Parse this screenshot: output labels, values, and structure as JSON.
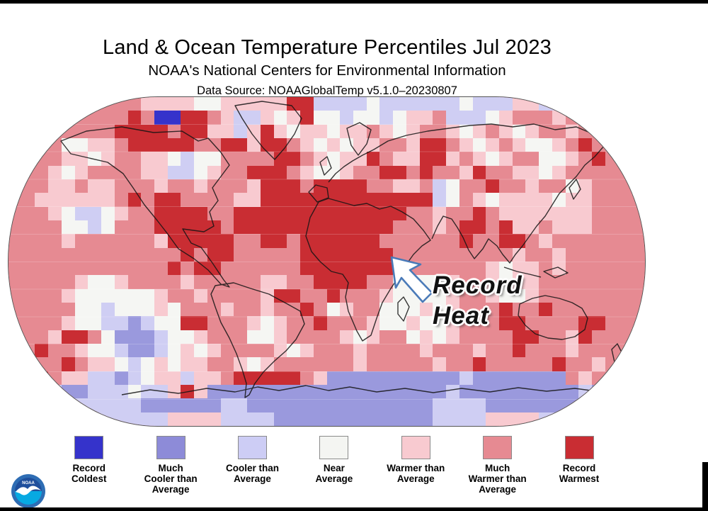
{
  "header": {
    "title": "Land & Ocean Temperature Percentiles Jul 2023",
    "subtitle": "NOAA's National Centers for Environmental Information",
    "source_line": "Data Source: NOAAGlobalTemp v5.1.0–20230807"
  },
  "annotation": {
    "line1": "Record",
    "line2": "Heat",
    "arrow_fill": "#ffffff",
    "arrow_outline": "#4a7ab8"
  },
  "logo": {
    "name": "NOAA",
    "text": "NOAA",
    "ring_color": "#2e6db4",
    "top_color": "#1f4f9c",
    "bottom_color": "#07a9e2"
  },
  "legend": {
    "items": [
      {
        "label": "Record\nColdest",
        "color": "#3533cb",
        "code": "K"
      },
      {
        "label": "Much\nCooler than\nAverage",
        "color": "#8d8bd8",
        "code": "M"
      },
      {
        "label": "Cooler than\nAverage",
        "color": "#cdcdf5",
        "code": "C"
      },
      {
        "label": "Near\nAverage",
        "color": "#f4f5f2",
        "code": "W"
      },
      {
        "label": "Warmer than\nAverage",
        "color": "#f8cad0",
        "code": "P"
      },
      {
        "label": "Much\nWarmer than\nAverage",
        "color": "#e68a92",
        "code": "R"
      },
      {
        "label": "Record\nWarmest",
        "color": "#c92d33",
        "code": "X"
      }
    ]
  },
  "map_grid": {
    "note": "Approximate 48x24 grid of temperature-percentile cells read from the map; codes K,M,C,W,P,R,X match legend categories.",
    "cols": 48,
    "palette": {
      "K": "#3533cb",
      "M": "#9a99dd",
      "C": "#cfcef3",
      "W": "#f5f6f3",
      "P": "#f8cad0",
      "R": "#e68a92",
      "X": "#c92d33"
    },
    "rows": [
      "RRRRRRRRRRPPPPWWPPPPPXXCCCCWCCCCCCWCCCPPCCCCRRRR",
      "RRRRRRRRRXRKKXXRPCCPWPXWWCWWCWPPRCCCWPRRRPRRRRRR",
      "RRRRRRRRXXXXRXXPPCPXPWPPWPPRPWPRRPWPRPWPRRPRRRRR",
      "RRRRWWPPRXXXXXRRXXPXXRPWPWPPRRPXXRPWPRPWWPRXRRRR",
      "RRRRPPWPRRPPWCWWRRRRXXRPWPPXRPPXXPRPWPRRWWPRXRRR",
      "RRRPWPRRRRPPCCWPRRXXXRPWWPRRXXRXRRPXRRPPWPRRRRRR",
      "RRRPPRPPRRRPRRPRRRPXXXRXXXXRRPPRCWRRXRRPRRWPRRRR",
      "RRPPPPPPRXRXXRRRRPPXXXXXXXXXXXXXCWRPWPPPPWPPRRRR",
      "RRRPWCCWPRRXXXXRRXXXXXXXXXXXXXRRPRRXRPPPPPPPRRRR",
      "RRRRWWCWRRRXXXXXRXXXXXXXXXXXXRRRPRXXRXPPRPPPRRRR",
      "RRRRPRRRRRRPXXXXXRRXXRXXXXXXRRRRRRXRRXXRPRRRRRRR",
      "RRRRRRRRRRRRRXRXXRRRRRXXXXXXXRRRRRRRRRPRRPRRRRRR",
      "RRRRRRRRRRRRXRXXRRRRRRXXXXXXXRRRRRRRPWPPRPRRRRRR",
      "RRRRRPWWPRRRRPRRRRRPPRRXXXXRRWWWWPRRPWPPRRRRRRRR",
      "RRRRPWWWWWWPRRPRRRRPXXRRXRRRPWWWWPRRPWWPRRRRRRRR",
      "RRRRRWWCWWWPWRRRPRRPRRXRWPRRWWWPWPRRRXRRXRRRRRRR",
      "RRRRPWWCCMCWWXXRRRPWPRRXRRRPWWPWWPRRRXXRRRRXXRRR",
      "RRRPXXRWMMMCWWPRRRWWPRRRRPWPRRWPWPRRRRXXRRPXRRRR",
      "RRXRRPWWCMMCWPWPRRRRPWPRRRPRRRRPRRRPRRXRRRPRRRRR",
      "RRRRXRPPWCWPWPPRRPWPRRRRRRPRRRRRPRRXRRRRRXRRPRRR",
      "RRXRPPCCMCWPPCPPRXXXXXRPMMMMMMMMMMCMMMMMMMRPRRRR",
      "PPCCMMCCCWCCPXPMMMMMMMMMMMMMMMMMMCMMMMMMMMMCMMPP",
      "CCCCCCCCCCMMMMMMCCMMMMMMMMMMMMMMCCCCMMMMMMMMCCCC",
      "CCCCCCCCCCCCPPPPCCCCMMMMMMMMMMMMCCCCPPPPCCCCCCCC"
    ]
  }
}
